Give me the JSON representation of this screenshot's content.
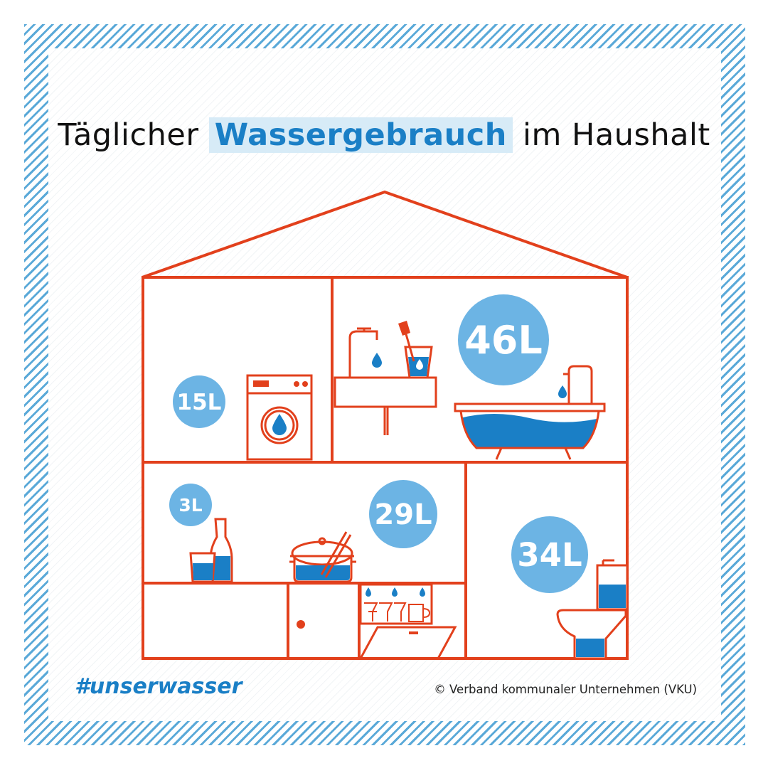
{
  "title": {
    "part1": "Täglicher",
    "highlight": "Wassergebrauch",
    "part2": "im Haushalt"
  },
  "usage": {
    "laundry": "15L",
    "bathroom": "46L",
    "drinking": "3L",
    "kitchen": "29L",
    "toilet": "34L"
  },
  "footer": {
    "hashtag": "#unserwasser",
    "copyright": "© Verband kommunaler Unternehmen (VKU)"
  },
  "colors": {
    "outline": "#e2401c",
    "bubble": "#6cb4e4",
    "water": "#1a7fc6",
    "hatch": "#5aa9d8"
  }
}
